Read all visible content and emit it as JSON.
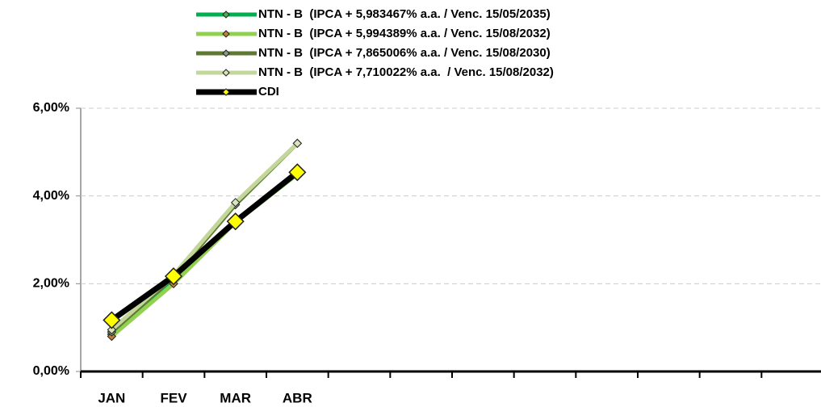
{
  "chart_data": {
    "type": "line",
    "categories": [
      "JAN",
      "FEV",
      "MAR",
      "ABR",
      null,
      null,
      null,
      null,
      null,
      null,
      null,
      null
    ],
    "series": [
      {
        "name": "NTN - B  (IPCA + 5,983467% a.a. / Venc. 15/05/2035)",
        "color": "#00b050",
        "marker_color": "#4caf50",
        "values": [
          0.85,
          2.05,
          3.4,
          4.5,
          null,
          null,
          null,
          null,
          null,
          null,
          null,
          null
        ]
      },
      {
        "name": "NTN - B  (IPCA + 5,994389% a.a. / Venc. 15/08/2032)",
        "color": "#92d050",
        "marker_color": "#c0803a",
        "values": [
          0.8,
          2.0,
          3.4,
          4.5,
          null,
          null,
          null,
          null,
          null,
          null,
          null,
          null
        ]
      },
      {
        "name": "NTN - B  (IPCA + 7,865006% a.a. / Venc. 15/08/2030)",
        "color": "#5e7a32",
        "marker_color": "#8a9a80",
        "values": [
          0.9,
          2.15,
          3.8,
          5.2,
          null,
          null,
          null,
          null,
          null,
          null,
          null,
          null
        ]
      },
      {
        "name": "NTN - B  (IPCA + 7,710022% a.a.  / Venc. 15/08/2032)",
        "color": "#c4d79b",
        "marker_color": "#d8e4bc",
        "values": [
          0.95,
          2.2,
          3.85,
          5.2,
          null,
          null,
          null,
          null,
          null,
          null,
          null,
          null
        ]
      },
      {
        "name": "CDI",
        "color": "#000000",
        "marker_color": "#ffff00",
        "values": [
          1.17,
          2.17,
          3.42,
          4.54,
          null,
          null,
          null,
          null,
          null,
          null,
          null,
          null
        ]
      }
    ],
    "ylim": [
      0,
      6
    ],
    "yticks": [
      {
        "value": 0,
        "label": "0,00%"
      },
      {
        "value": 2,
        "label": "2,00%"
      },
      {
        "value": 4,
        "label": "4,00%"
      },
      {
        "value": 6,
        "label": "6,00%"
      }
    ],
    "grid": true
  }
}
